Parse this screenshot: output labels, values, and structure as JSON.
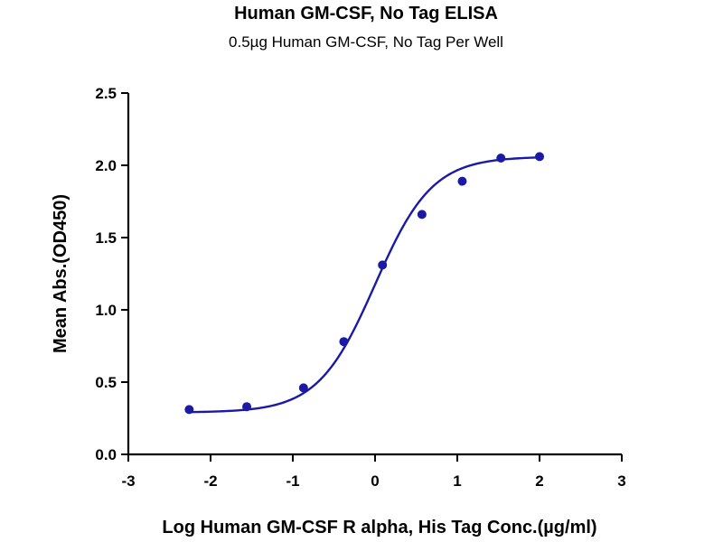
{
  "chart_data": {
    "type": "scatter",
    "title": "Human GM-CSF, No Tag ELISA",
    "subtitle": "0.5µg Human GM-CSF, No Tag Per Well",
    "xlabel": "Log Human GM-CSF R alpha, His Tag Conc.(µg/ml)",
    "ylabel": "Mean Abs.(OD450)",
    "xlim": [
      -3,
      3
    ],
    "ylim": [
      0,
      2.5
    ],
    "xticks": [
      "-3",
      "-2",
      "-1",
      "0",
      "1",
      "2",
      "3"
    ],
    "yticks": [
      "0.0",
      "0.5",
      "1.0",
      "1.5",
      "2.0",
      "2.5"
    ],
    "grid": false,
    "series": [
      {
        "x": [
          -2.26,
          -1.56,
          -0.87,
          -0.38,
          0.09,
          0.57,
          1.06,
          1.53,
          2.0
        ],
        "y": [
          0.31,
          0.33,
          0.46,
          0.78,
          1.31,
          1.66,
          1.89,
          2.05,
          2.06
        ],
        "color": "#1a1aa6"
      }
    ],
    "fit": {
      "model": "4PL",
      "bottom": 0.29,
      "top": 2.06,
      "logEC50": 0.0,
      "hillslope": 1.25,
      "x_range": [
        -2.26,
        2.0
      ],
      "color": "#1a1aa6"
    }
  }
}
